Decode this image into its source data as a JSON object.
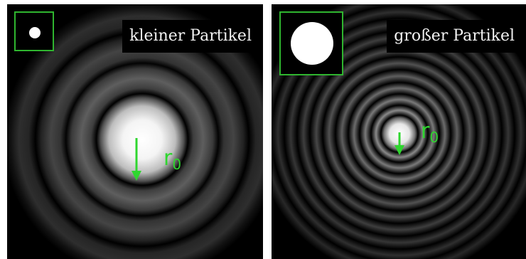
{
  "panels": [
    {
      "label": "kleiner Partikel",
      "radius_label": "r",
      "radius_subscript": "0"
    },
    {
      "label": "großer Partikel",
      "radius_label": "r",
      "radius_subscript": "0"
    }
  ],
  "colors": {
    "arrow": "#2fd62f",
    "inset_border": "#2fb52f",
    "background": "#000000"
  }
}
